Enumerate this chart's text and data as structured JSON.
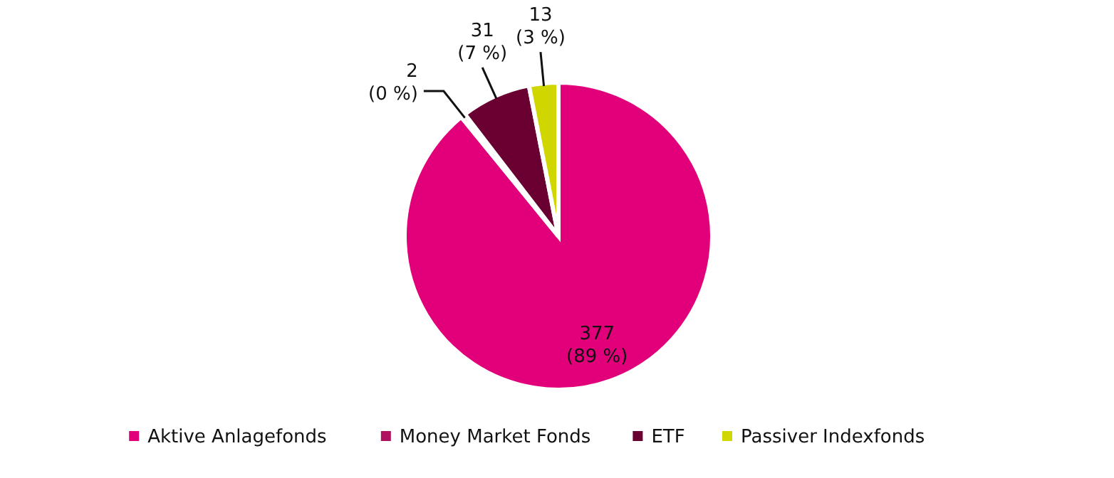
{
  "chart_data": {
    "type": "pie",
    "categories": [
      "Aktive Anlagefonds",
      "Money Market Fonds",
      "ETF",
      "Passiver Indexfonds"
    ],
    "values": [
      377,
      2,
      31,
      13
    ],
    "colors": [
      "#e2007a",
      "#b0115e",
      "#6a0032",
      "#cfd600"
    ],
    "value_labels": [
      "377 (89 %)",
      "2 (0 %)",
      "31 (7 %)",
      "13 (3 %)"
    ],
    "legend": "bottom"
  }
}
